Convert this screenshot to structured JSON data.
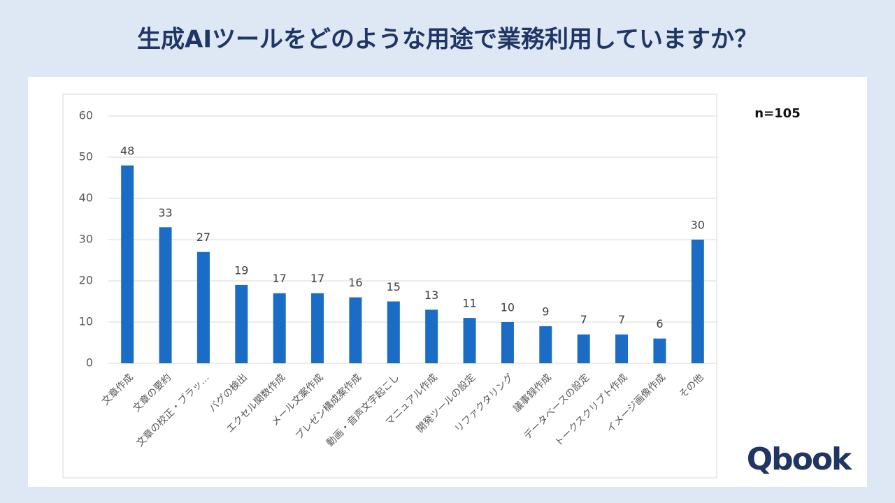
{
  "chart_data": {
    "type": "bar",
    "title": "生成AIツールをどのような用途で業務利用していますか？",
    "annotation": "n=105",
    "brand": "Qbook",
    "categories": [
      "文章作成",
      "文章の要約",
      "文章の校正・ブラッ…",
      "バグの検出",
      "エクセル関数作成",
      "メール文案作成",
      "プレゼン構成案作成",
      "動画・音声文字起こし",
      "マニュアル作成",
      "開発ツールの設定",
      "リファクタリング",
      "議事録作成",
      "データベースの設定",
      "トークスクリプト作成",
      "イメージ画像作成",
      "その他"
    ],
    "values": [
      48,
      33,
      27,
      19,
      17,
      17,
      16,
      15,
      13,
      11,
      10,
      9,
      7,
      7,
      6,
      30
    ],
    "color": "#1a6cc4",
    "ylim": [
      0,
      60
    ],
    "yticks": [
      0,
      10,
      20,
      30,
      40,
      50,
      60
    ],
    "grid": true
  }
}
